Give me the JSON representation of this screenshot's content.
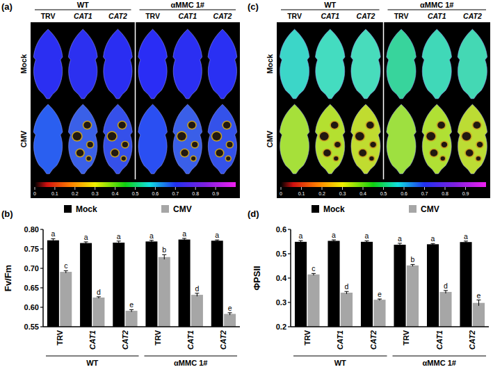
{
  "images": [
    {
      "label": "(a)",
      "groups": [
        "WT",
        "αMMC 1#"
      ],
      "columns": [
        "TRV",
        "CAT1",
        "CAT2",
        "TRV",
        "CAT1",
        "CAT2"
      ],
      "rows": [
        "Mock",
        "CMV"
      ],
      "leaf_colors": [
        [
          "#2b2ff2",
          "#2c30f0",
          "#2a2ef2",
          "#2a2df5",
          "#2b2ff2",
          "#2a30f3"
        ],
        [
          "#2a5ff0",
          "#3a60e8",
          "#3550ea",
          "#2a4ff2",
          "#3a5fe8",
          "#3452ea"
        ]
      ],
      "lesions": [
        [
          false,
          false,
          false,
          false,
          false,
          false
        ],
        [
          false,
          true,
          true,
          false,
          true,
          true
        ]
      ],
      "colorbar_range": [
        0,
        1
      ],
      "colorbar_ticks": [
        0,
        0.1,
        0.2,
        0.3,
        0.4,
        0.5,
        0.6,
        0.7,
        0.8,
        0.9
      ]
    },
    {
      "label": "(c)",
      "groups": [
        "WT",
        "αMMC 1#"
      ],
      "columns": [
        "TRV",
        "CAT1",
        "CAT2",
        "TRV",
        "CAT1",
        "CAT2"
      ],
      "rows": [
        "Mock",
        "CMV"
      ],
      "leaf_colors": [
        [
          "#3cd6c8",
          "#44dcc0",
          "#48dcbc",
          "#38d49c",
          "#40d8b8",
          "#44d8b4"
        ],
        [
          "#a6e03a",
          "#b4e030",
          "#c0dc30",
          "#9ee040",
          "#b0e034",
          "#bcdc34"
        ]
      ],
      "lesions": [
        [
          false,
          false,
          false,
          false,
          false,
          false
        ],
        [
          false,
          true,
          true,
          false,
          true,
          true
        ]
      ],
      "colorbar_range": [
        0,
        1
      ],
      "colorbar_ticks": [
        0,
        0.1,
        0.2,
        0.3,
        0.4,
        0.5,
        0.6,
        0.7,
        0.8,
        0.9
      ]
    }
  ],
  "chart_data": [
    {
      "type": "bar",
      "title": "(b)",
      "y_label": "Fv/Fm",
      "categories": [
        "TRV",
        "CAT1",
        "CAT2",
        "TRV",
        "CAT1",
        "CAT2"
      ],
      "group_labels": [
        "WT",
        "αMMC 1#"
      ],
      "series": [
        {
          "name": "Mock",
          "color": "#000000",
          "values": [
            0.772,
            0.765,
            0.766,
            0.769,
            0.774,
            0.771
          ],
          "errors": [
            0.004,
            0.003,
            0.004,
            0.003,
            0.003,
            0.002
          ],
          "letters": [
            "a",
            "a",
            "a",
            "a",
            "a",
            "a"
          ]
        },
        {
          "name": "CMV",
          "color": "#a6a6a6",
          "values": [
            0.691,
            0.625,
            0.591,
            0.729,
            0.632,
            0.583
          ],
          "errors": [
            0.003,
            0.002,
            0.003,
            0.006,
            0.004,
            0.003
          ],
          "letters": [
            "c",
            "d",
            "e",
            "b",
            "d",
            "e"
          ]
        }
      ],
      "ylim": [
        0.55,
        0.8
      ],
      "yticks": [
        0.55,
        {
          "value": 0.6,
          "label": "0.60"
        },
        0.65,
        {
          "value": 0.7,
          "label": "0.70"
        },
        0.75,
        {
          "value": 0.8,
          "label": "0.80"
        }
      ],
      "legend": "top"
    },
    {
      "type": "bar",
      "title": "(d)",
      "y_label": "ΦPSII",
      "categories": [
        "TRV",
        "CAT1",
        "CAT2",
        "TRV",
        "CAT1",
        "CAT2"
      ],
      "group_labels": [
        "WT",
        "αMMC 1#"
      ],
      "series": [
        {
          "name": "Mock",
          "color": "#000000",
          "values": [
            0.549,
            0.553,
            0.549,
            0.537,
            0.539,
            0.548
          ],
          "errors": [
            0.005,
            0.004,
            0.004,
            0.006,
            0.003,
            0.004
          ],
          "letters": [
            "a",
            "a",
            "a",
            "a",
            "a",
            "a"
          ]
        },
        {
          "name": "CMV",
          "color": "#a6a6a6",
          "values": [
            0.415,
            0.34,
            0.311,
            0.452,
            0.343,
            0.298
          ],
          "errors": [
            0.004,
            0.005,
            0.003,
            0.004,
            0.006,
            0.012
          ],
          "letters": [
            "c",
            "d",
            "e",
            "b",
            "d",
            "e"
          ]
        }
      ],
      "ylim": [
        0.2,
        0.6
      ],
      "yticks": [
        0.2,
        0.3,
        0.4,
        0.5,
        0.6
      ],
      "legend": "top"
    }
  ]
}
